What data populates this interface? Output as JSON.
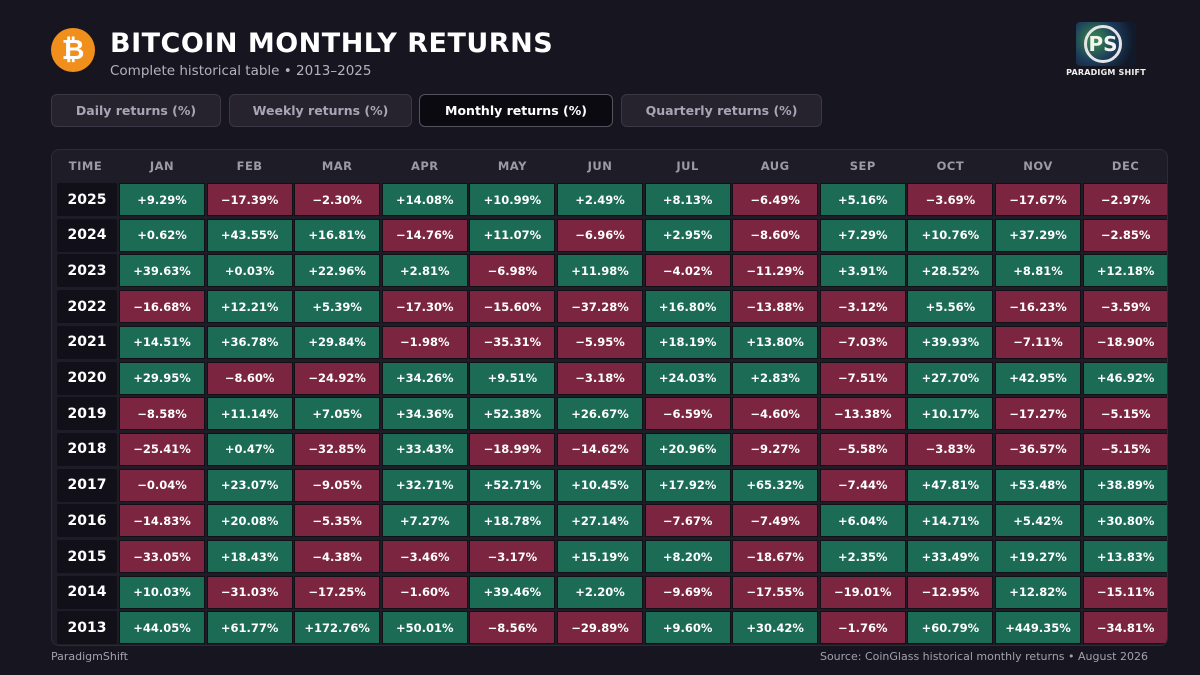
{
  "header": {
    "title": "BITCOIN MONTHLY RETURNS",
    "subtitle": "Complete historical table • 2013–2025",
    "logo_glyph": "₿",
    "brand_glyph": "PS",
    "brand_name": "PARADIGM SHIFT"
  },
  "tabs": [
    {
      "label": "Daily returns (%)",
      "active": false
    },
    {
      "label": "Weekly returns (%)",
      "active": false
    },
    {
      "label": "Monthly returns (%)",
      "active": true
    },
    {
      "label": "Quarterly returns (%)",
      "active": false
    }
  ],
  "table": {
    "corner_label": "TIME",
    "months": [
      "JAN",
      "FEB",
      "MAR",
      "APR",
      "MAY",
      "JUN",
      "JUL",
      "AUG",
      "SEP",
      "OCT",
      "NOV",
      "DEC"
    ],
    "rows": [
      {
        "year": "2025",
        "values": [
          "+9.29%",
          "−17.39%",
          "−2.30%",
          "+14.08%",
          "+10.99%",
          "+2.49%",
          "+8.13%",
          "−6.49%",
          "+5.16%",
          "−3.69%",
          "−17.67%",
          "−2.97%"
        ]
      },
      {
        "year": "2024",
        "values": [
          "+0.62%",
          "+43.55%",
          "+16.81%",
          "−14.76%",
          "+11.07%",
          "−6.96%",
          "+2.95%",
          "−8.60%",
          "+7.29%",
          "+10.76%",
          "+37.29%",
          "−2.85%"
        ]
      },
      {
        "year": "2023",
        "values": [
          "+39.63%",
          "+0.03%",
          "+22.96%",
          "+2.81%",
          "−6.98%",
          "+11.98%",
          "−4.02%",
          "−11.29%",
          "+3.91%",
          "+28.52%",
          "+8.81%",
          "+12.18%"
        ]
      },
      {
        "year": "2022",
        "values": [
          "−16.68%",
          "+12.21%",
          "+5.39%",
          "−17.30%",
          "−15.60%",
          "−37.28%",
          "+16.80%",
          "−13.88%",
          "−3.12%",
          "+5.56%",
          "−16.23%",
          "−3.59%"
        ]
      },
      {
        "year": "2021",
        "values": [
          "+14.51%",
          "+36.78%",
          "+29.84%",
          "−1.98%",
          "−35.31%",
          "−5.95%",
          "+18.19%",
          "+13.80%",
          "−7.03%",
          "+39.93%",
          "−7.11%",
          "−18.90%"
        ]
      },
      {
        "year": "2020",
        "values": [
          "+29.95%",
          "−8.60%",
          "−24.92%",
          "+34.26%",
          "+9.51%",
          "−3.18%",
          "+24.03%",
          "+2.83%",
          "−7.51%",
          "+27.70%",
          "+42.95%",
          "+46.92%"
        ]
      },
      {
        "year": "2019",
        "values": [
          "−8.58%",
          "+11.14%",
          "+7.05%",
          "+34.36%",
          "+52.38%",
          "+26.67%",
          "−6.59%",
          "−4.60%",
          "−13.38%",
          "+10.17%",
          "−17.27%",
          "−5.15%"
        ]
      },
      {
        "year": "2018",
        "values": [
          "−25.41%",
          "+0.47%",
          "−32.85%",
          "+33.43%",
          "−18.99%",
          "−14.62%",
          "+20.96%",
          "−9.27%",
          "−5.58%",
          "−3.83%",
          "−36.57%",
          "−5.15%"
        ]
      },
      {
        "year": "2017",
        "values": [
          "−0.04%",
          "+23.07%",
          "−9.05%",
          "+32.71%",
          "+52.71%",
          "+10.45%",
          "+17.92%",
          "+65.32%",
          "−7.44%",
          "+47.81%",
          "+53.48%",
          "+38.89%"
        ]
      },
      {
        "year": "2016",
        "values": [
          "−14.83%",
          "+20.08%",
          "−5.35%",
          "+7.27%",
          "+18.78%",
          "+27.14%",
          "−7.67%",
          "−7.49%",
          "+6.04%",
          "+14.71%",
          "+5.42%",
          "+30.80%"
        ]
      },
      {
        "year": "2015",
        "values": [
          "−33.05%",
          "+18.43%",
          "−4.38%",
          "−3.46%",
          "−3.17%",
          "+15.19%",
          "+8.20%",
          "−18.67%",
          "+2.35%",
          "+33.49%",
          "+19.27%",
          "+13.83%"
        ]
      },
      {
        "year": "2014",
        "values": [
          "+10.03%",
          "−31.03%",
          "−17.25%",
          "−1.60%",
          "+39.46%",
          "+2.20%",
          "−9.69%",
          "−17.55%",
          "−19.01%",
          "−12.95%",
          "+12.82%",
          "−15.11%"
        ]
      },
      {
        "year": "2013",
        "values": [
          "+44.05%",
          "+61.77%",
          "+172.76%",
          "+50.01%",
          "−8.56%",
          "−29.89%",
          "+9.60%",
          "+30.42%",
          "−1.76%",
          "+60.79%",
          "+449.35%",
          "−34.81%"
        ]
      }
    ]
  },
  "footer": {
    "left": "ParadigmShift",
    "right": "Source: CoinGlass historical monthly returns • August 2026"
  },
  "colors": {
    "positive": "#1c6b54",
    "negative": "#7b2540",
    "background": "#17151f",
    "bitcoin_orange": "#f08f1b"
  }
}
